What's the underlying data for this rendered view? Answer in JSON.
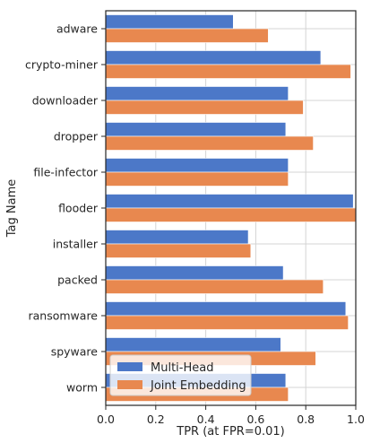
{
  "chart_data": {
    "type": "bar",
    "orientation": "horizontal",
    "title": "",
    "xlabel": "TPR (at FPR=0.01)",
    "ylabel": "Tag Name",
    "xlim": [
      0.0,
      1.0
    ],
    "xticks": [
      "0.0",
      "0.2",
      "0.4",
      "0.6",
      "0.8",
      "1.0"
    ],
    "grid": true,
    "legend_position": "lower-left",
    "categories": [
      "adware",
      "crypto-miner",
      "downloader",
      "dropper",
      "file-infector",
      "flooder",
      "installer",
      "packed",
      "ransomware",
      "spyware",
      "worm"
    ],
    "series": [
      {
        "name": "Multi-Head",
        "color": "#4c78c8",
        "values": [
          0.51,
          0.86,
          0.73,
          0.72,
          0.73,
          0.99,
          0.57,
          0.71,
          0.96,
          0.7,
          0.72
        ]
      },
      {
        "name": "Joint Embedding",
        "color": "#e8884f",
        "values": [
          0.65,
          0.98,
          0.79,
          0.83,
          0.73,
          1.0,
          0.58,
          0.87,
          0.97,
          0.84,
          0.73
        ]
      }
    ]
  }
}
